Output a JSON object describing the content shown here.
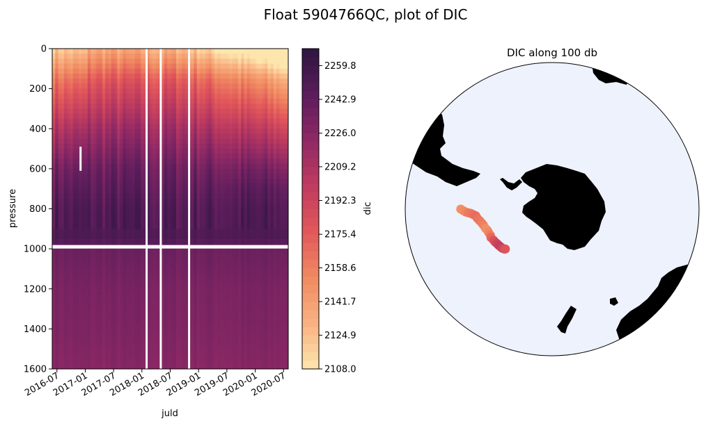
{
  "figure": {
    "title": "Float 5904766QC, plot of DIC"
  },
  "chart_data": [
    {
      "type": "heatmap",
      "title": "",
      "xlabel": "juld",
      "ylabel": "pressure",
      "x_tick_labels": [
        "2016-07",
        "2017-01",
        "2017-07",
        "2018-01",
        "2018-07",
        "2019-01",
        "2019-07",
        "2020-01",
        "2020-07"
      ],
      "x_range": [
        "2016-06",
        "2020-08"
      ],
      "y_ticks": [
        0,
        200,
        400,
        600,
        800,
        1000,
        1200,
        1400,
        1600
      ],
      "ylim": [
        1600,
        0
      ],
      "y_inverted": true,
      "colorbar": {
        "label": "dic",
        "min": 2108.0,
        "max": 2268.3,
        "tick_labels": [
          "2108.0",
          "2124.9",
          "2141.7",
          "2158.6",
          "2175.4",
          "2192.3",
          "2209.2",
          "2226.0",
          "2242.9",
          "2259.8"
        ],
        "colormap": "magma_r",
        "colors": [
          "#fde6ad",
          "#f9b282",
          "#f08a61",
          "#e2585a",
          "#c03c5f",
          "#8f2965",
          "#5c1d5c",
          "#2e1540"
        ]
      },
      "depth_profile": [
        {
          "pressure": 0,
          "dic": 2150
        },
        {
          "pressure": 200,
          "dic": 2185
        },
        {
          "pressure": 400,
          "dic": 2215
        },
        {
          "pressure": 600,
          "dic": 2238
        },
        {
          "pressure": 800,
          "dic": 2250
        },
        {
          "pressure": 950,
          "dic": 2252
        },
        {
          "pressure": 1000,
          "dic": 2238
        },
        {
          "pressure": 1200,
          "dic": 2232
        },
        {
          "pressure": 1400,
          "dic": 2230
        },
        {
          "pressure": 1600,
          "dic": 2226
        }
      ],
      "gaps": {
        "vertical_dates": [
          "2018-02",
          "2018-05",
          "2018-11"
        ],
        "horizontal_pressure": 990,
        "short_gap": {
          "date": "2016-12",
          "pressure_range": [
            490,
            610
          ]
        }
      },
      "grid": false
    },
    {
      "type": "scatter",
      "title": "DIC along 100 db",
      "projection": "south polar stereographic",
      "map_colors": {
        "ocean": "#edf2fc",
        "land": "#000000"
      },
      "series": [
        {
          "lat": [
            -50.5,
            -51.5,
            -52.5,
            -53.5,
            -54.5,
            -55.5,
            -56.5,
            -57,
            -57.8,
            -58.5,
            -59,
            -59.5,
            -60,
            -60.2,
            -60.5,
            -60.3,
            -60.8,
            -61,
            -61.3,
            -61.5,
            -61.8,
            -62,
            -62.3,
            -62.5,
            -62.8
          ],
          "lon": [
            -90,
            -89,
            -88,
            -87.5,
            -87,
            -86,
            -85,
            -83,
            -81,
            -79,
            -77,
            -74,
            -72,
            -70,
            -67,
            -65,
            -62,
            -60,
            -58,
            -56,
            -54,
            -52,
            -51,
            -50,
            -49.5
          ],
          "dic": [
            2150,
            2152,
            2155,
            2160,
            2162,
            2165,
            2168,
            2165,
            2162,
            2160,
            2158,
            2152,
            2150,
            2155,
            2160,
            2170,
            2180,
            2185,
            2192,
            2195,
            2200,
            2190,
            2195,
            2185,
            2180
          ]
        }
      ]
    }
  ]
}
